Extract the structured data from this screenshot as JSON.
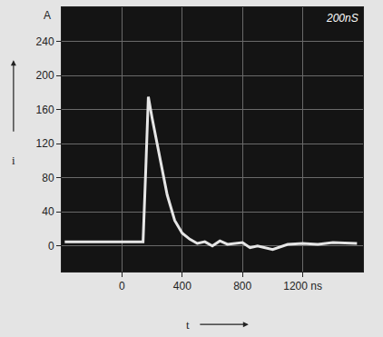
{
  "chart_data": {
    "type": "line",
    "xlabel": "t",
    "ylabel": "i",
    "annotations": [
      "A",
      "200nS"
    ],
    "x": [
      -380,
      0,
      100,
      140,
      160,
      175,
      200,
      250,
      300,
      350,
      400,
      450,
      500,
      550,
      600,
      650,
      700,
      800,
      850,
      900,
      1000,
      1100,
      1200,
      1300,
      1400,
      1560
    ],
    "values": [
      5,
      5,
      5,
      5,
      100,
      175,
      150,
      105,
      60,
      30,
      15,
      8,
      3,
      5,
      0,
      6,
      2,
      4,
      -2,
      0,
      -4,
      2,
      3,
      2,
      4,
      3
    ],
    "color": "#e6e6e6",
    "xlim": [
      -400,
      1600
    ],
    "xticks": [
      0,
      400,
      800,
      {
        "value": 1200,
        "label": "1200 ns"
      }
    ],
    "ylim": [
      -30,
      280
    ],
    "yticks": [
      0,
      40,
      80,
      120,
      160,
      200,
      240
    ],
    "grid": true
  }
}
